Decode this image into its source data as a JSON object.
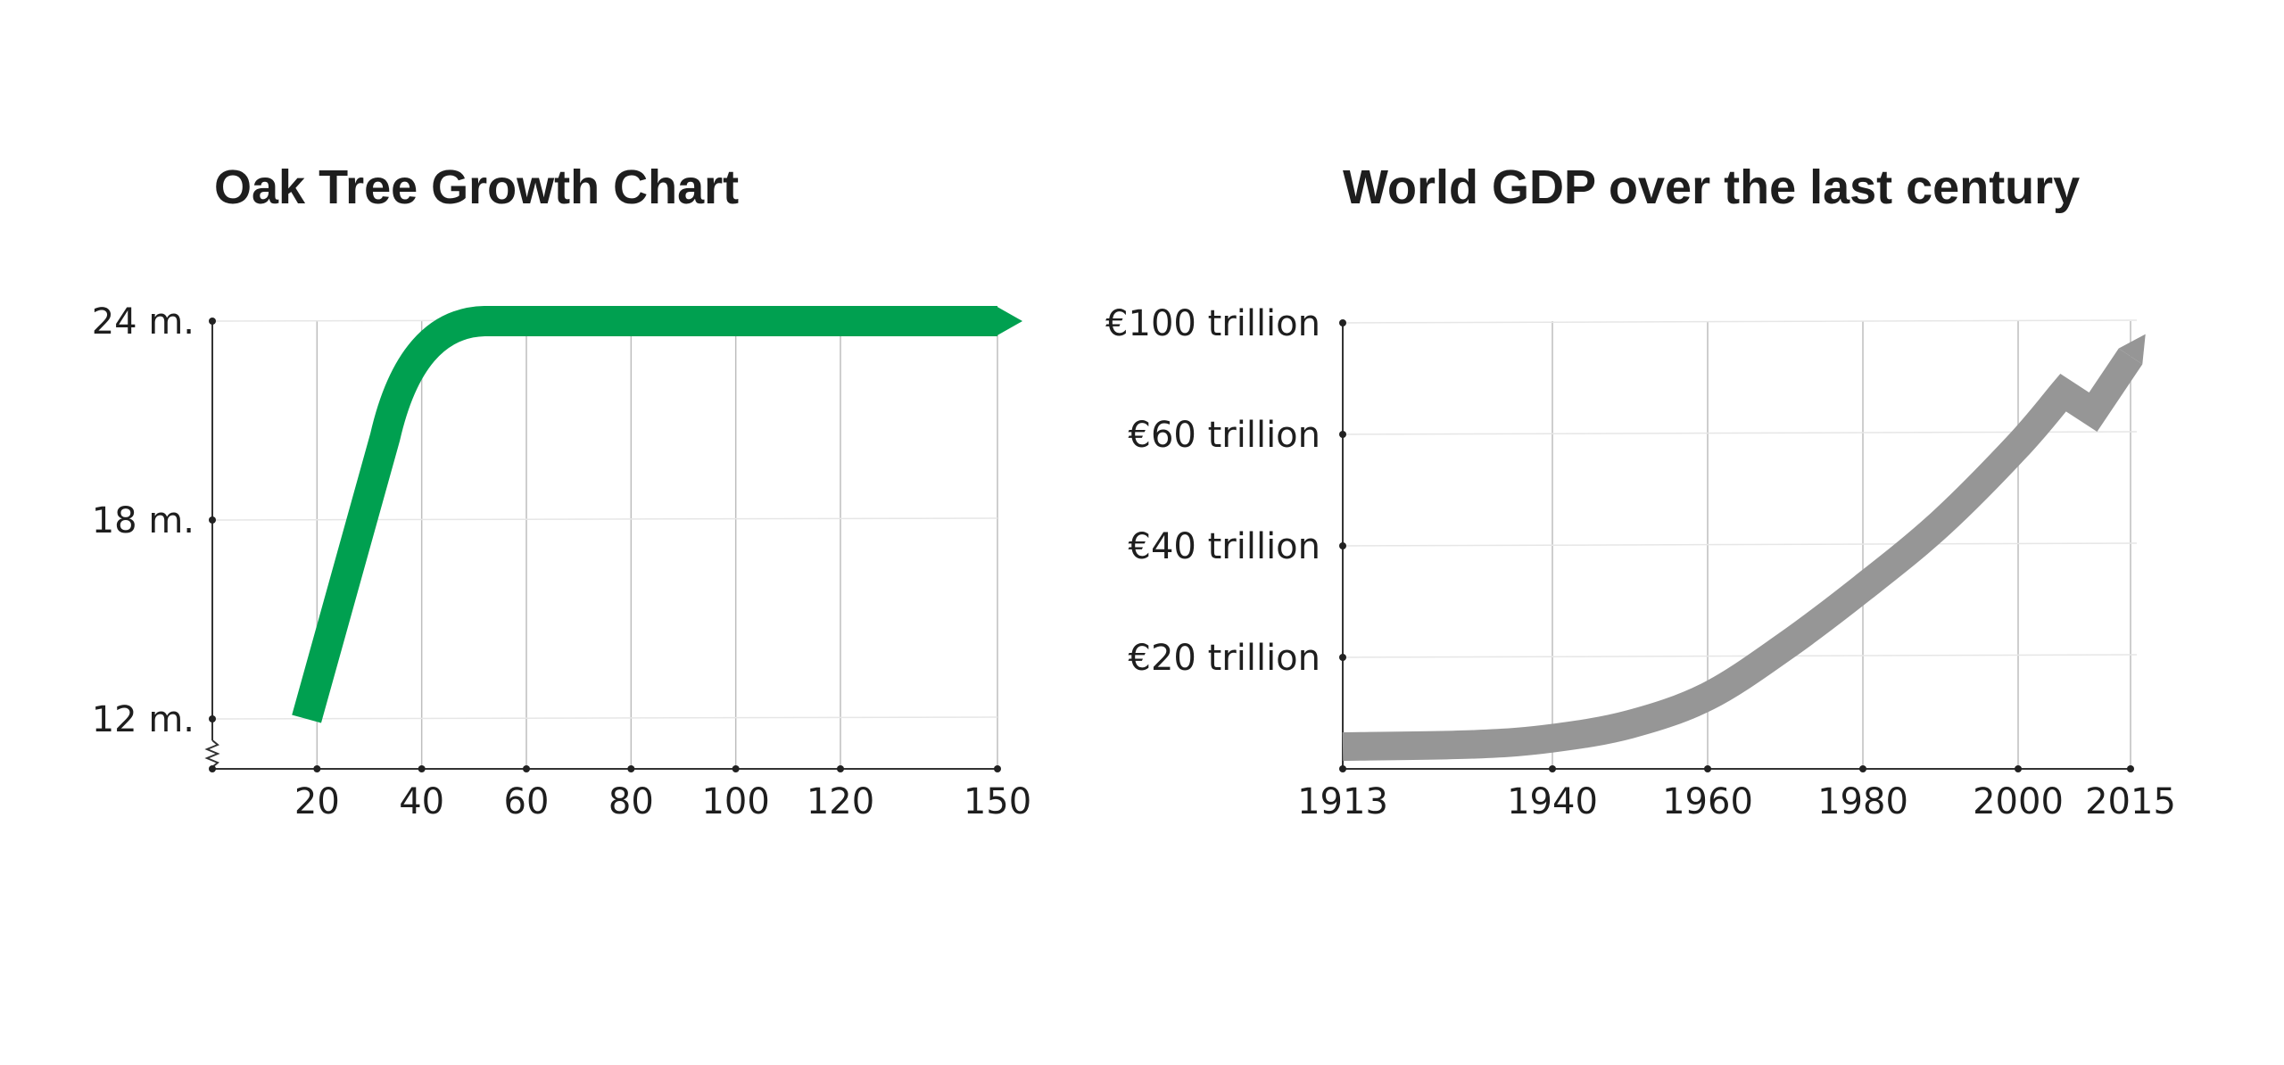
{
  "colors": {
    "oak": "#00a050",
    "gdp": "#969696",
    "text": "#1e1e1e"
  },
  "chart_data": [
    {
      "type": "line",
      "title": "Oak Tree Growth Chart",
      "x_ticks": [
        20,
        40,
        60,
        80,
        100,
        120,
        150
      ],
      "x_tick_labels": [
        "20",
        "40",
        "60",
        "80",
        "100",
        "120",
        "150"
      ],
      "y_ticks": [
        12,
        18,
        24
      ],
      "y_tick_labels": [
        "12 m.",
        "18 m.",
        "24 m."
      ],
      "xlim": [
        0,
        150
      ],
      "ylim": [
        10.5,
        24
      ],
      "axis_break": "y",
      "series": [
        {
          "x": [
            18,
            33,
            38,
            45,
            52,
            150
          ],
          "y": [
            12,
            20.5,
            22.5,
            23.6,
            24,
            24
          ]
        }
      ],
      "grid": true
    },
    {
      "type": "line",
      "title": "World GDP over the last century",
      "x_ticks": [
        1913,
        1940,
        1960,
        1980,
        2000,
        2015
      ],
      "x_tick_labels": [
        "1913",
        "1940",
        "1960",
        "1980",
        "2000",
        "2015"
      ],
      "y_ticks": [
        20,
        40,
        60,
        100
      ],
      "y_tick_labels": [
        "€20 trillion",
        "€40 trillion",
        "€60 trillion",
        "€100 trillion"
      ],
      "xlim": [
        1913,
        2015
      ],
      "ylim": [
        0,
        100
      ],
      "series": [
        {
          "x": [
            1913,
            1930,
            1940,
            1950,
            1960,
            1970,
            1980,
            1990,
            2000,
            2006,
            2008,
            2010,
            2015
          ],
          "y": [
            4,
            4.4,
            5.5,
            8,
            13,
            22,
            32.5,
            44,
            58,
            75,
            72,
            68,
            88
          ]
        }
      ],
      "grid": true
    }
  ]
}
